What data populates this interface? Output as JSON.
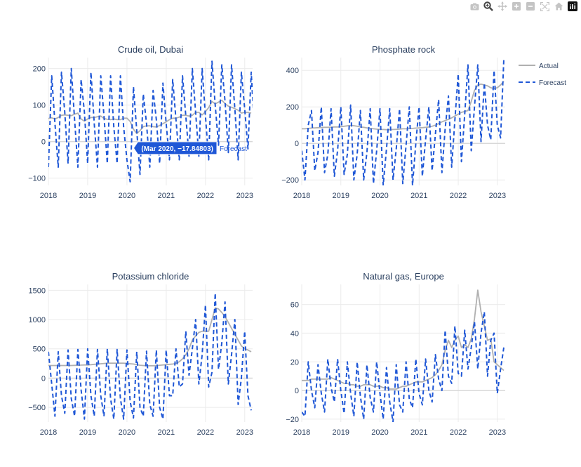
{
  "modebar": {
    "icons": [
      "camera-icon",
      "zoom-icon",
      "pan-icon",
      "zoom-in-icon",
      "zoom-out-icon",
      "autoscale-icon",
      "reset-axes-icon",
      "plotly-logo-icon"
    ]
  },
  "colors": {
    "actual": "#b0b0b0",
    "forecast": "#1f57d6",
    "grid": "#ebebeb",
    "text": "#2a3f5f"
  },
  "legend": {
    "actual": "Actual",
    "forecast": "Forecast",
    "placement": "top-right"
  },
  "hover": {
    "text": "(Mar 2020, −17.84803)",
    "name": "Forecast",
    "panel": 0,
    "x": 2020.17,
    "y": -17.84803
  },
  "chart_data": [
    {
      "type": "line",
      "title": "Crude oil, Dubai",
      "xlim": [
        2018,
        2023.2
      ],
      "ylim": [
        -120,
        230
      ],
      "xticks": [
        2018,
        2019,
        2020,
        2021,
        2022,
        2023
      ],
      "xtick_labels": [
        "2018",
        "2019",
        "2020",
        "2021",
        "2022",
        "2023"
      ],
      "yticks": [
        -100,
        0,
        100,
        200
      ],
      "ytick_labels": [
        "−100",
        "0",
        "100",
        "200"
      ],
      "actual_start": 2018,
      "forecast_start": 2018,
      "step": 0.0833,
      "series": [
        {
          "name": "Actual",
          "values": [
            63,
            65,
            62,
            66,
            72,
            73,
            72,
            71,
            75,
            78,
            62,
            56,
            62,
            66,
            66,
            68,
            70,
            63,
            61,
            60,
            62,
            60,
            60,
            64,
            64,
            55,
            34,
            22,
            30,
            41,
            43,
            43,
            41,
            40,
            44,
            49,
            54,
            60,
            64,
            64,
            67,
            72,
            72,
            70,
            72,
            80,
            80,
            73,
            82,
            93,
            110,
            103,
            108,
            113,
            104,
            97,
            94,
            90,
            86,
            78,
            80,
            80,
            78
          ]
        },
        {
          "name": "Forecast",
          "values": [
            -70,
            180,
            50,
            -70,
            190,
            80,
            -60,
            200,
            60,
            -70,
            170,
            80,
            -60,
            190,
            50,
            -70,
            180,
            70,
            -60,
            180,
            40,
            -60,
            180,
            40,
            -50,
            -110,
            150,
            30,
            -90,
            130,
            50,
            -70,
            140,
            60,
            -60,
            160,
            50,
            -50,
            170,
            60,
            -50,
            180,
            70,
            -40,
            200,
            80,
            -40,
            200,
            70,
            -50,
            220,
            100,
            -10,
            210,
            110,
            -30,
            210,
            90,
            -50,
            190,
            90,
            -20,
            190,
            30
          ]
        }
      ]
    },
    {
      "type": "line",
      "title": "Phosphate rock",
      "xlim": [
        2018,
        2023.2
      ],
      "ylim": [
        -230,
        470
      ],
      "xticks": [
        2018,
        2019,
        2020,
        2021,
        2022,
        2023
      ],
      "xtick_labels": [
        "2018",
        "2019",
        "2020",
        "2021",
        "2022",
        "2023"
      ],
      "yticks": [
        -200,
        0,
        200,
        400
      ],
      "ytick_labels": [
        "−200",
        "0",
        "200",
        "400"
      ],
      "actual_start": 2018,
      "forecast_start": 2018,
      "step": 0.0833,
      "series": [
        {
          "name": "Actual",
          "values": [
            80,
            80,
            82,
            84,
            85,
            86,
            87,
            88,
            88,
            89,
            90,
            90,
            92,
            94,
            96,
            98,
            97,
            94,
            90,
            88,
            85,
            82,
            80,
            78,
            76,
            76,
            75,
            75,
            76,
            77,
            78,
            80,
            80,
            82,
            82,
            84,
            85,
            86,
            88,
            90,
            94,
            100,
            108,
            118,
            125,
            132,
            140,
            150,
            160,
            170,
            175,
            180,
            230,
            290,
            320,
            325,
            320,
            315,
            305,
            300,
            305,
            320,
            340
          ]
        },
        {
          "name": "Forecast",
          "values": [
            -40,
            -200,
            100,
            180,
            -150,
            -50,
            200,
            -160,
            -60,
            190,
            -180,
            -40,
            200,
            -170,
            -60,
            210,
            -200,
            -60,
            180,
            -200,
            -50,
            190,
            -220,
            -40,
            190,
            -230,
            -30,
            190,
            -200,
            -30,
            190,
            -220,
            -10,
            200,
            -230,
            0,
            200,
            -180,
            20,
            200,
            -150,
            50,
            240,
            -160,
            80,
            260,
            -130,
            130,
            380,
            -100,
            160,
            430,
            -40,
            200,
            430,
            10,
            330,
            100,
            20,
            400,
            100,
            30,
            460
          ]
        }
      ]
    },
    {
      "type": "line",
      "title": "Potassium chloride",
      "xlim": [
        2018,
        2023.2
      ],
      "ylim": [
        -750,
        1600
      ],
      "xticks": [
        2018,
        2019,
        2020,
        2021,
        2022,
        2023
      ],
      "xtick_labels": [
        "2018",
        "2019",
        "2020",
        "2021",
        "2022",
        "2023"
      ],
      "yticks": [
        -500,
        0,
        500,
        1000,
        1500
      ],
      "ytick_labels": [
        "−500",
        "0",
        "500",
        "1000",
        "1500"
      ],
      "actual_start": 2018,
      "forecast_start": 2018,
      "step": 0.0833,
      "series": [
        {
          "name": "Actual",
          "values": [
            215,
            215,
            215,
            215,
            215,
            215,
            215,
            215,
            218,
            220,
            222,
            225,
            225,
            230,
            235,
            240,
            245,
            250,
            255,
            255,
            255,
            255,
            255,
            255,
            250,
            245,
            240,
            230,
            220,
            215,
            212,
            210,
            212,
            215,
            220,
            225,
            230,
            235,
            240,
            250,
            280,
            330,
            400,
            500,
            650,
            720,
            780,
            800,
            800,
            800,
            1000,
            1200,
            1180,
            1120,
            1050,
            950,
            850,
            750,
            650,
            550,
            500,
            480,
            450
          ]
        },
        {
          "name": "Forecast",
          "values": [
            450,
            -100,
            -650,
            450,
            -300,
            -600,
            480,
            -350,
            -650,
            490,
            -200,
            -700,
            500,
            -300,
            -650,
            490,
            -300,
            -650,
            500,
            -350,
            -700,
            490,
            -350,
            -700,
            480,
            -400,
            -680,
            450,
            -500,
            -650,
            460,
            -450,
            -650,
            480,
            -500,
            -700,
            480,
            -300,
            -300,
            500,
            -150,
            -100,
            800,
            50,
            500,
            1000,
            -100,
            400,
            1250,
            -150,
            100,
            1450,
            150,
            600,
            1300,
            -100,
            400,
            1000,
            -450,
            0,
            800,
            -300,
            -550
          ]
        }
      ]
    },
    {
      "type": "line",
      "title": "Natural gas, Europe",
      "xlim": [
        2018,
        2023.2
      ],
      "ylim": [
        -22,
        74
      ],
      "xticks": [
        2018,
        2019,
        2020,
        2021,
        2022,
        2023
      ],
      "xtick_labels": [
        "2018",
        "2019",
        "2020",
        "2021",
        "2022",
        "2023"
      ],
      "yticks": [
        -20,
        0,
        20,
        40,
        60
      ],
      "ytick_labels": [
        "−20",
        "0",
        "20",
        "40",
        "60"
      ],
      "actual_start": 2018,
      "forecast_start": 2018,
      "step": 0.0833,
      "series": [
        {
          "name": "Actual",
          "values": [
            7,
            7,
            7,
            8,
            8,
            8,
            8,
            8,
            8,
            9,
            8,
            7,
            6,
            5,
            5,
            4,
            4,
            3,
            3,
            4,
            4,
            4,
            3,
            3,
            3,
            2,
            2,
            1,
            1,
            1,
            2,
            3,
            3,
            4,
            5,
            6,
            6,
            6,
            7,
            8,
            9,
            11,
            14,
            18,
            28,
            35,
            30,
            35,
            38,
            30,
            32,
            30,
            36,
            50,
            70,
            55,
            45,
            35,
            36,
            20,
            18,
            16,
            14
          ]
        },
        {
          "name": "Forecast",
          "values": [
            -15,
            -18,
            20,
            0,
            -12,
            18,
            -2,
            -15,
            22,
            2,
            -8,
            22,
            0,
            -16,
            20,
            -2,
            -18,
            20,
            -4,
            -20,
            18,
            -5,
            -15,
            20,
            -2,
            -20,
            16,
            -8,
            -22,
            18,
            -10,
            -15,
            20,
            -6,
            -12,
            22,
            -2,
            -10,
            22,
            0,
            -8,
            25,
            8,
            0,
            42,
            10,
            5,
            45,
            12,
            10,
            42,
            15,
            30,
            48,
            15,
            40,
            55,
            10,
            35,
            40,
            -2,
            15,
            30
          ]
        }
      ]
    }
  ]
}
